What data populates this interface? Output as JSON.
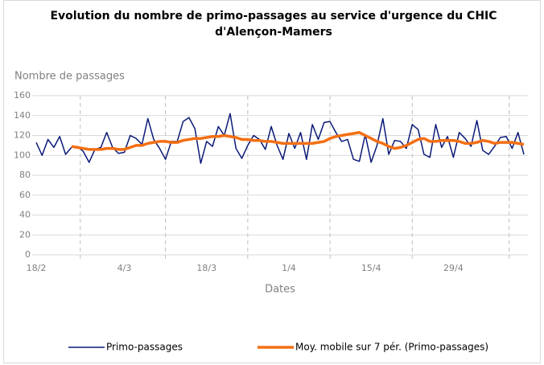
{
  "chart_data": {
    "type": "line",
    "title": "Evolution du nombre de primo-passages au service d'urgence du CHIC d'Alençon-Mamers",
    "y_label": "Nombre de passages",
    "x_label": "Dates",
    "categories": [
      "18/2",
      null,
      null,
      null,
      null,
      null,
      null,
      null,
      null,
      null,
      null,
      null,
      null,
      null,
      null,
      "4/3",
      null,
      null,
      null,
      null,
      null,
      null,
      null,
      null,
      null,
      null,
      null,
      null,
      null,
      "18/3",
      null,
      null,
      null,
      null,
      null,
      null,
      null,
      null,
      null,
      null,
      null,
      null,
      null,
      "1/4",
      null,
      null,
      null,
      null,
      null,
      null,
      null,
      null,
      null,
      null,
      null,
      null,
      null,
      "15/4",
      null,
      null,
      null,
      null,
      null,
      null,
      null,
      null,
      null,
      null,
      null,
      null,
      null,
      "29/4",
      null,
      null,
      null,
      null,
      null,
      null,
      null,
      null,
      null,
      null,
      null,
      null
    ],
    "series": [
      {
        "name": "Primo-passages",
        "color": "#0b1a78",
        "values": [
          113,
          100,
          116,
          108,
          119,
          101,
          108,
          109,
          104,
          93,
          106,
          108,
          123,
          108,
          102,
          103,
          120,
          117,
          111,
          137,
          116,
          107,
          96,
          114,
          114,
          134,
          138,
          127,
          92,
          114,
          109,
          129,
          120,
          142,
          107,
          97,
          110,
          120,
          116,
          106,
          129,
          110,
          96,
          122,
          107,
          123,
          96,
          131,
          116,
          133,
          134,
          123,
          114,
          116,
          96,
          94,
          121,
          93,
          110,
          137,
          101,
          115,
          114,
          107,
          131,
          126,
          101,
          98,
          131,
          108,
          119,
          98,
          123,
          117,
          109,
          135,
          105,
          101,
          109,
          118,
          119,
          107,
          123,
          101
        ]
      },
      {
        "name": "Moy. mobile sur 7 pér. (Primo-passages)",
        "color": "#f36f13",
        "values": [
          null,
          null,
          null,
          null,
          null,
          null,
          109,
          108,
          107,
          106,
          106,
          106,
          107,
          107,
          106,
          106,
          108,
          110,
          110,
          112,
          113,
          114,
          114,
          113,
          113,
          115,
          116,
          117,
          117,
          118,
          119,
          119,
          120,
          119,
          118,
          116,
          116,
          115,
          115,
          114,
          114,
          113,
          112,
          112,
          112,
          112,
          112,
          112,
          113,
          114,
          117,
          119,
          120,
          121,
          122,
          123,
          120,
          117,
          114,
          112,
          109,
          107,
          108,
          110,
          113,
          116,
          117,
          114,
          114,
          115,
          115,
          115,
          114,
          112,
          112,
          113,
          115,
          114,
          112,
          113,
          113,
          113,
          112,
          111
        ]
      }
    ],
    "ylim": [
      0,
      160
    ],
    "yticks": [
      0,
      20,
      40,
      60,
      80,
      100,
      120,
      140,
      160
    ],
    "grid": true
  }
}
